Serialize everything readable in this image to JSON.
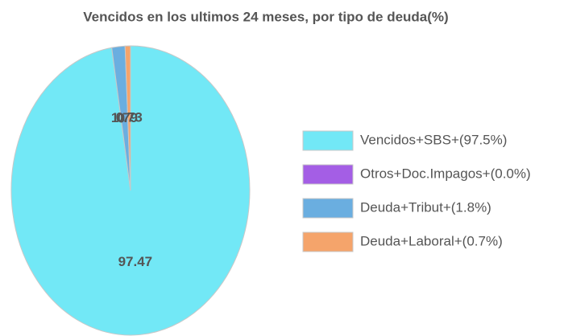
{
  "chart_data": {
    "type": "pie",
    "title": "Vencidos en los ultimos 24 meses, por tipo de deuda(%)",
    "categories": [
      "Vencidos+SBS+(97.5%)",
      "Otros+Doc.Impagos+(0.0%)",
      "Deuda+Tribut+(1.8%)",
      "Deuda+Laboral+(0.7%)"
    ],
    "values": [
      97.47,
      0,
      1.79,
      0.73
    ],
    "colors": [
      "#72e8f6",
      "#a45ee5",
      "#6aaee0",
      "#f5a46b"
    ],
    "legend": "right"
  }
}
